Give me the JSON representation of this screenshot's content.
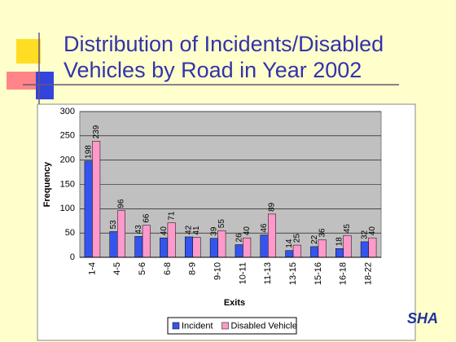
{
  "title_lines": [
    "Distribution of Incidents/Disabled",
    "Vehicles by Road in Year 2002"
  ],
  "logo": "SHA",
  "chart_data": {
    "type": "bar",
    "categories": [
      "1-4",
      "4-5",
      "5-6",
      "6-8",
      "8-9",
      "9-10",
      "10-11",
      "11-13",
      "13-15",
      "15-16",
      "16-18",
      "18-22"
    ],
    "series": [
      {
        "name": "Incident",
        "color": "#3355ee",
        "values": [
          198,
          53,
          43,
          40,
          42,
          39,
          26,
          46,
          14,
          22,
          18,
          32
        ]
      },
      {
        "name": "Disabled Vehicle",
        "color": "#ff99cc",
        "values": [
          239,
          96,
          66,
          71,
          41,
          55,
          40,
          89,
          25,
          36,
          45,
          40
        ]
      }
    ],
    "x_label": "Exits",
    "y_label": "Frequency",
    "ylim": [
      0,
      300
    ],
    "yticks": [
      0,
      50,
      100,
      150,
      200,
      250,
      300
    ],
    "grid": true,
    "legend": "bottom"
  }
}
